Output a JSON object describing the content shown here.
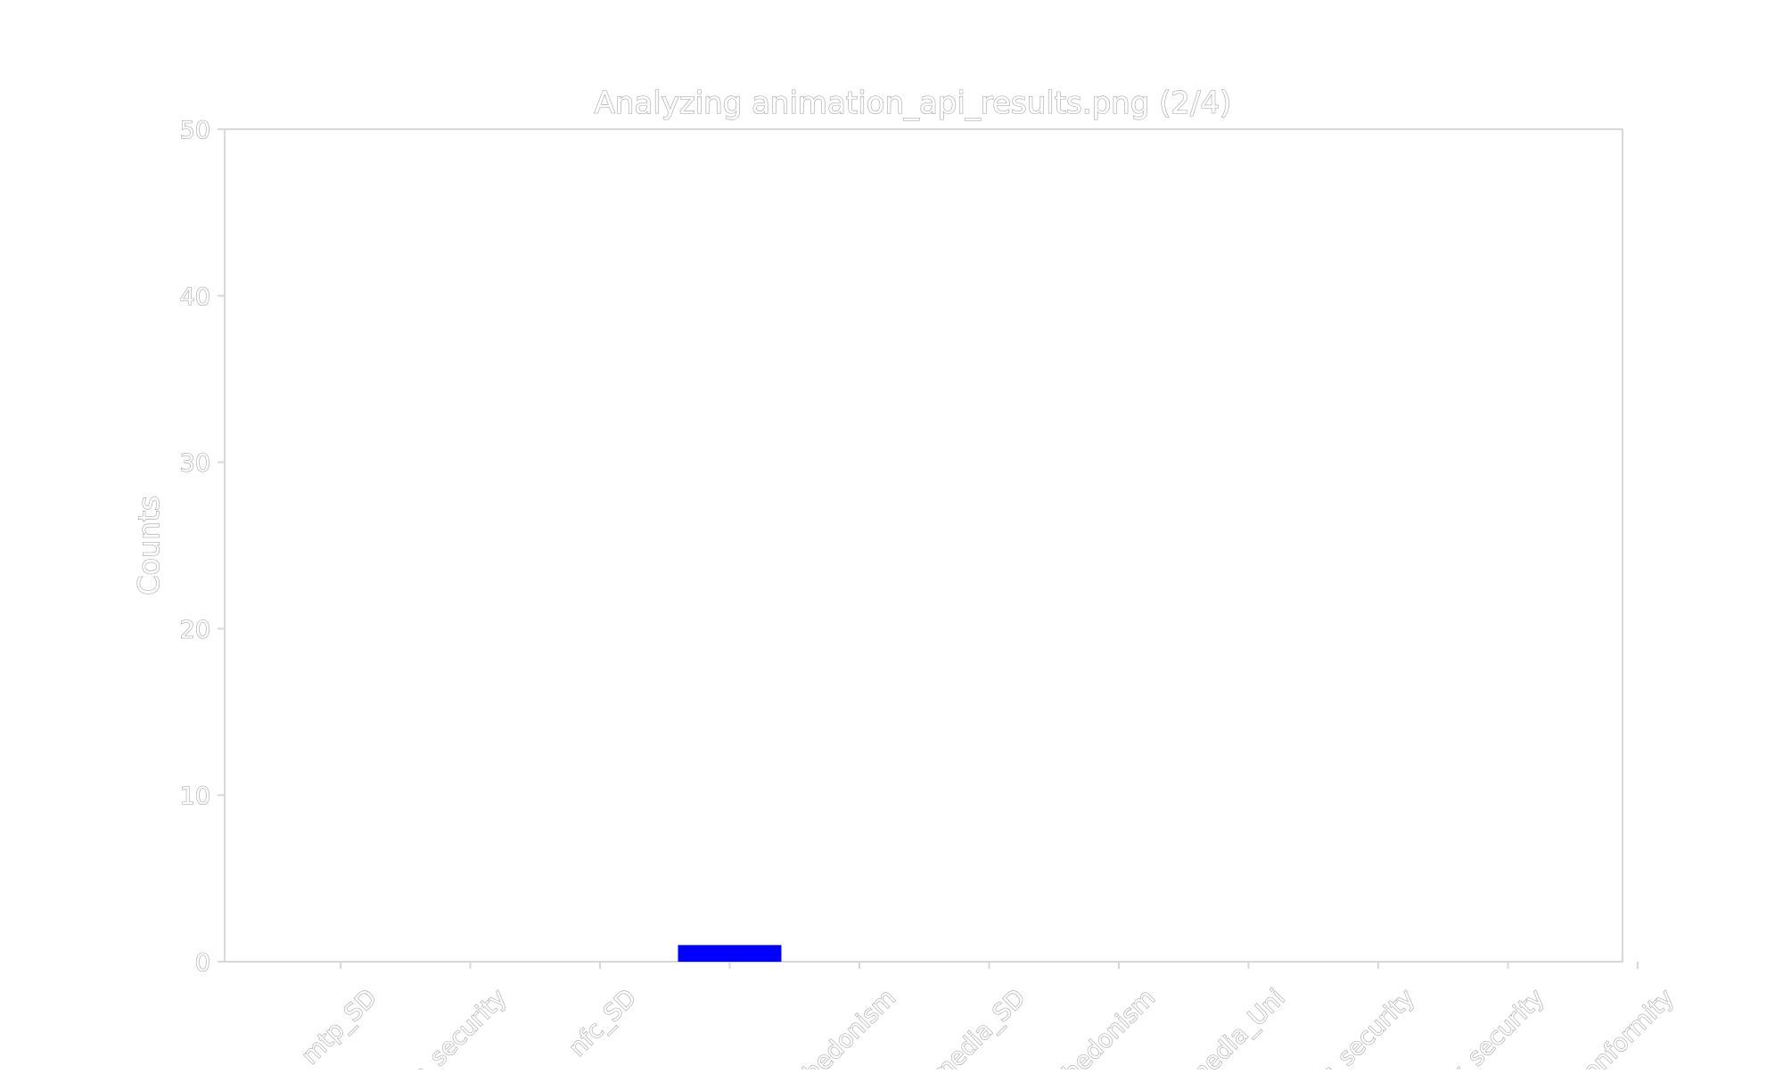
{
  "chart_data": {
    "type": "bar",
    "title": "Analyzing animation_api_results.png (2/4)",
    "xlabel": "",
    "ylabel": "Counts",
    "ylim": [
      0,
      50
    ],
    "yticks": [
      0,
      10,
      20,
      30,
      40,
      50
    ],
    "grid": false,
    "bar_color": "#0000ff",
    "categories": [
      "mtp_SD",
      "re_security",
      "nfc_SD",
      "",
      "hedonism",
      "media_SD",
      "hedonism",
      "media_Uni",
      "nfc_security",
      "my_security",
      "conformity"
    ],
    "values": [
      0,
      0,
      0,
      1,
      0,
      0,
      0,
      0,
      0,
      0,
      0
    ]
  }
}
